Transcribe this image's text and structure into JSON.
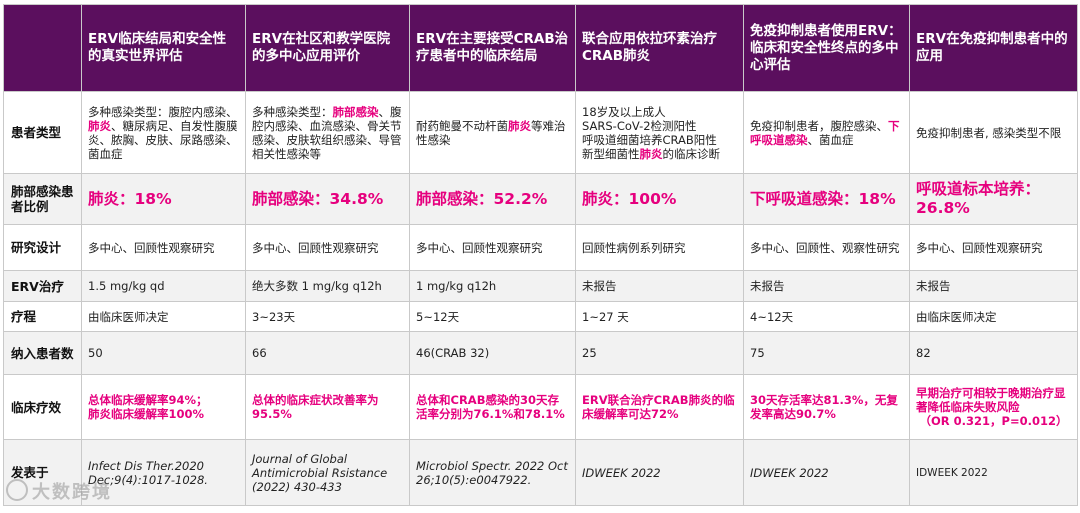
{
  "headers": [
    "ERV临床结局和安全性的真实世界评估",
    "ERV在社区和教学医院的多中心应用评价",
    "ERV在主要接受CRAB治疗患者中的临床结局",
    "联合应用依拉环素治疗CRAB肺炎",
    "免疫抑制患者使用ERV：临床和安全性终点的多中心评估",
    "ERV在免疫抑制患者中的应用"
  ],
  "row_labels": {
    "patient_type": "患者类型",
    "lung_infection": "肺部感染患者比例",
    "design": "研究设计",
    "erv": "ERV治疗",
    "course": "疗程",
    "n": "纳入患者数",
    "efficacy": "临床疗效",
    "published": "发表于"
  },
  "patient_type": [
    {
      "a": "多种感染类型：腹腔内感染、",
      "b": "肺炎",
      "c": "、糖尿病足、自发性腹膜炎、脓胸、皮肤、尿路感染、菌血症"
    },
    {
      "a": "多种感染类型：",
      "b": "肺部感染",
      "c": "、腹腔内感染、血流感染、骨关节感染、皮肤软组织感染、导管相关性感染等"
    },
    {
      "a": "耐药鲍曼不动杆菌",
      "b": "肺炎",
      "c": "等难治性感染"
    },
    {
      "a": "18岁及以上成人\nSARS-CoV-2检测阳性\n呼吸道细菌培养CRAB阳性\n新型细菌性",
      "b": "肺炎",
      "c": "的临床诊断"
    },
    {
      "a": "免疫抑制患者，腹腔感染、",
      "b": "下呼吸道感染",
      "c": "、菌血症"
    },
    {
      "a": "免疫抑制患者, 感染类型不限",
      "b": "",
      "c": ""
    }
  ],
  "lung_infection": [
    "肺炎：18%",
    "肺部感染：34.8%",
    "肺部感染：52.2%",
    "肺炎：100%",
    "下呼吸道感染：18%",
    "呼吸道标本培养：26.8%"
  ],
  "design": [
    "多中心、回顾性观察研究",
    "多中心、回顾性观察研究",
    "多中心、回顾性观察研究",
    "回顾性病例系列研究",
    "多中心、回顾性、观察性研究",
    "多中心、回顾性观察研究"
  ],
  "erv": [
    "1.5 mg/kg qd",
    "绝大多数 1 mg/kg q12h",
    "1 mg/kg q12h",
    "未报告",
    "未报告",
    "未报告"
  ],
  "course": [
    "由临床医师决定",
    "3~23天",
    "5~12天",
    "1~27 天",
    "4~12天",
    "由临床医师决定"
  ],
  "n": [
    "50",
    "66",
    "46(CRAB 32)",
    "25",
    "75",
    "82"
  ],
  "efficacy": [
    "总体临床缓解率94%；\n肺炎临床缓解率100%",
    "总体的临床症状改善率为95.5%",
    "总体和CRAB感染的30天存活率分别为76.1%和78.1%",
    "ERV联合治疗CRAB肺炎的临床缓解率可达72%",
    "30天存活率达81.3%，无复发率高达90.7%",
    "早期治疗可相较于晚期治疗显著降低临床失败风险",
    "（OR 0.321，P=0.012）"
  ],
  "published": [
    "Infect Dis Ther.2020 Dec;9(4):1017-1028.",
    "Journal of Global Antimicrobial Rsistance (2022) 430-433",
    "Microbiol Spectr. 2022 Oct 26;10(5):e0047922.",
    "IDWEEK 2022",
    "IDWEEK 2022",
    "IDWEEK 2022"
  ],
  "watermark": "大数跨境"
}
